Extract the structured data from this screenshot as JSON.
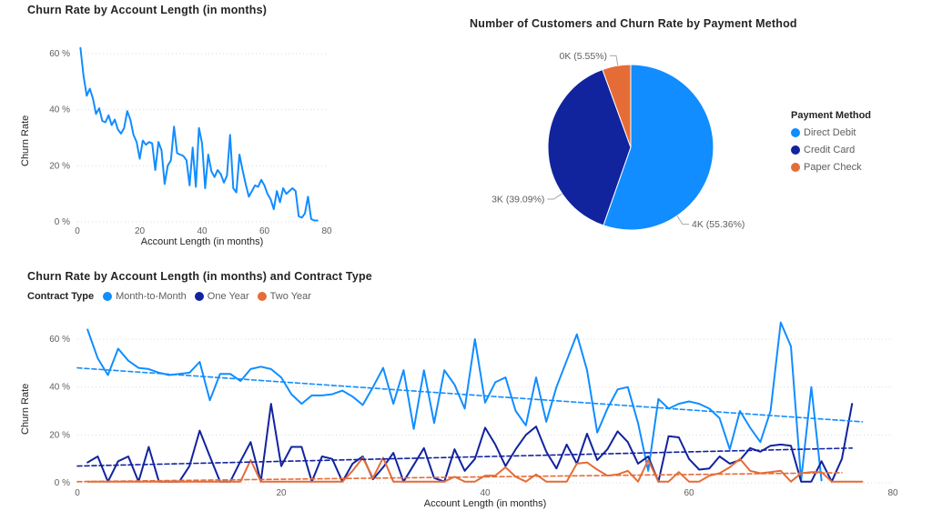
{
  "palette": {
    "light_blue": "#118DFF",
    "dark_blue": "#12239E",
    "orange": "#E66C37",
    "grid": "#D9D9D9",
    "text_dark": "#252423",
    "text_gray": "#605E5C"
  },
  "chart_data": [
    {
      "type": "line",
      "title": "Churn Rate by Account Length (in months)",
      "xlabel": "Account Length (in months)",
      "ylabel": "Churn Rate",
      "xlim": [
        0,
        80
      ],
      "ylim": [
        0,
        65
      ],
      "x_ticks": [
        0,
        20,
        40,
        60,
        80
      ],
      "x_tick_labels": [
        "0",
        "20",
        "40",
        "60",
        "80"
      ],
      "y_ticks": [
        0,
        20,
        40,
        60
      ],
      "y_tick_labels": [
        "0 %",
        "20 %",
        "40 %",
        "60 %"
      ],
      "grid": "dotted-horizontal",
      "legend_position": "none",
      "series": [
        {
          "name": "Churn Rate",
          "color": "#118DFF",
          "dash": false,
          "x_start": 1,
          "values": [
            62,
            52,
            45,
            47.5,
            44,
            38.5,
            40.5,
            36,
            35.5,
            38,
            34.5,
            36.5,
            33,
            31.5,
            33.5,
            39.5,
            36.5,
            31,
            28.5,
            22.5,
            29,
            27.5,
            28.5,
            28,
            18.5,
            28.5,
            25.5,
            13.5,
            20,
            22,
            34,
            24.5,
            24,
            23.5,
            22,
            13,
            26.5,
            12.5,
            33.5,
            28,
            12,
            24,
            18,
            16,
            18.5,
            17,
            14,
            16.5,
            31,
            12,
            10.5,
            24,
            18.5,
            13.5,
            9,
            11,
            13,
            12.5,
            15,
            13,
            10,
            8,
            4.5,
            11,
            7,
            12,
            10,
            11,
            12,
            11,
            2,
            1.5,
            3,
            9,
            1,
            0.5,
            0.5
          ]
        }
      ]
    },
    {
      "type": "pie",
      "title": "Number of Customers and Churn Rate by Payment Method",
      "legend_title": "Payment Method",
      "legend_position": "right",
      "slices": [
        {
          "name": "Direct Debit",
          "label": "4K (55.36%)",
          "value": 55.36,
          "color": "#118DFF"
        },
        {
          "name": "Credit Card",
          "label": "3K (39.09%)",
          "value": 39.09,
          "color": "#12239E"
        },
        {
          "name": "Paper Check",
          "label": "0K (5.55%)",
          "value": 5.55,
          "color": "#E66C37"
        }
      ]
    },
    {
      "type": "line",
      "title": "Churn Rate by Account Length (in months) and Contract Type",
      "legend_title": "Contract Type",
      "legend_position": "top",
      "xlabel": "Account Length (in months)",
      "ylabel": "Churn Rate",
      "xlim": [
        0,
        80
      ],
      "ylim": [
        0,
        67
      ],
      "x_ticks": [
        0,
        20,
        40,
        60,
        80
      ],
      "x_tick_labels": [
        "0",
        "20",
        "40",
        "60",
        "80"
      ],
      "y_ticks": [
        0,
        20,
        40,
        60
      ],
      "y_tick_labels": [
        "0 %",
        "20 %",
        "40 %",
        "60 %"
      ],
      "grid": "dotted-horizontal",
      "series": [
        {
          "name": "Month-to-Month",
          "color": "#118DFF",
          "dash": false,
          "in_legend": true,
          "x_start": 1,
          "values": [
            64,
            52,
            45,
            56,
            51,
            48,
            47.5,
            46,
            45,
            45.5,
            46,
            50.5,
            34.5,
            45.5,
            45.5,
            42.5,
            47.5,
            48.5,
            47.5,
            44,
            37,
            33,
            36.5,
            36.5,
            37,
            38.5,
            36,
            32.5,
            40,
            48,
            33,
            47,
            22.5,
            47,
            25,
            47,
            41,
            31,
            60,
            33.5,
            42,
            44,
            30,
            24,
            44,
            25.5,
            40,
            51,
            62,
            47,
            21,
            31,
            39,
            40,
            25,
            5,
            35,
            31,
            33,
            34,
            33,
            31,
            27,
            14,
            30,
            23,
            17,
            30,
            67,
            57,
            1,
            40,
            1
          ]
        },
        {
          "name": "One Year",
          "color": "#12239E",
          "dash": false,
          "in_legend": true,
          "x_start": 1,
          "values": [
            8.5,
            11,
            0.5,
            9,
            11,
            0.5,
            15,
            0.5,
            0.5,
            0.5,
            7,
            21.8,
            11,
            0.5,
            0.5,
            9,
            17,
            0.5,
            33,
            7,
            15,
            15,
            0.5,
            11,
            10,
            0.5,
            8,
            11,
            1.5,
            6.5,
            12.5,
            0.5,
            7.5,
            14.5,
            2,
            0.5,
            14,
            5,
            10,
            23,
            16,
            7,
            14,
            20,
            23.5,
            13,
            6,
            16,
            8,
            20.5,
            9.5,
            14,
            21.5,
            17,
            8,
            11,
            0.5,
            19.5,
            19,
            10,
            5.5,
            6,
            11,
            8,
            9.5,
            14.5,
            13,
            15.5,
            16,
            15.5,
            0.5,
            0.5,
            9,
            0.5,
            10,
            33
          ]
        },
        {
          "name": "Two Year",
          "color": "#E66C37",
          "dash": false,
          "in_legend": true,
          "x_start": 1,
          "values": [
            0.5,
            0.5,
            0.5,
            0.5,
            0.5,
            0.5,
            0.5,
            0.5,
            0.5,
            0.5,
            0.5,
            0.5,
            0.5,
            0.5,
            0.5,
            0.5,
            9.5,
            0.5,
            0.5,
            0.5,
            0.5,
            0.5,
            0.5,
            0.5,
            0.5,
            0.5,
            5,
            10.5,
            2,
            10.5,
            0.5,
            0.5,
            0.5,
            0.5,
            0.5,
            0.5,
            2.5,
            0.5,
            0.5,
            3,
            3,
            6.5,
            2.5,
            0.5,
            3.5,
            0.5,
            0.5,
            0.5,
            8,
            8.5,
            5.5,
            3,
            3.5,
            5,
            0.5,
            9.5,
            0.5,
            0.5,
            4.5,
            0.5,
            0.5,
            3,
            4,
            6.5,
            10,
            5,
            4,
            4.5,
            5,
            0.5,
            4,
            4.5,
            4.5,
            0.5,
            0.5,
            0.5,
            0.5
          ]
        },
        {
          "name": "Month-to-Month trend",
          "color": "#118DFF",
          "dash": true,
          "in_legend": false,
          "x": [
            0,
            77
          ],
          "values": [
            48,
            25.5
          ]
        },
        {
          "name": "One Year trend",
          "color": "#12239E",
          "dash": true,
          "in_legend": false,
          "x": [
            0,
            76
          ],
          "values": [
            7,
            14.5
          ]
        },
        {
          "name": "Two Year trend",
          "color": "#E66C37",
          "dash": true,
          "in_legend": false,
          "x": [
            0,
            75
          ],
          "values": [
            0.5,
            4.2
          ]
        }
      ]
    }
  ]
}
